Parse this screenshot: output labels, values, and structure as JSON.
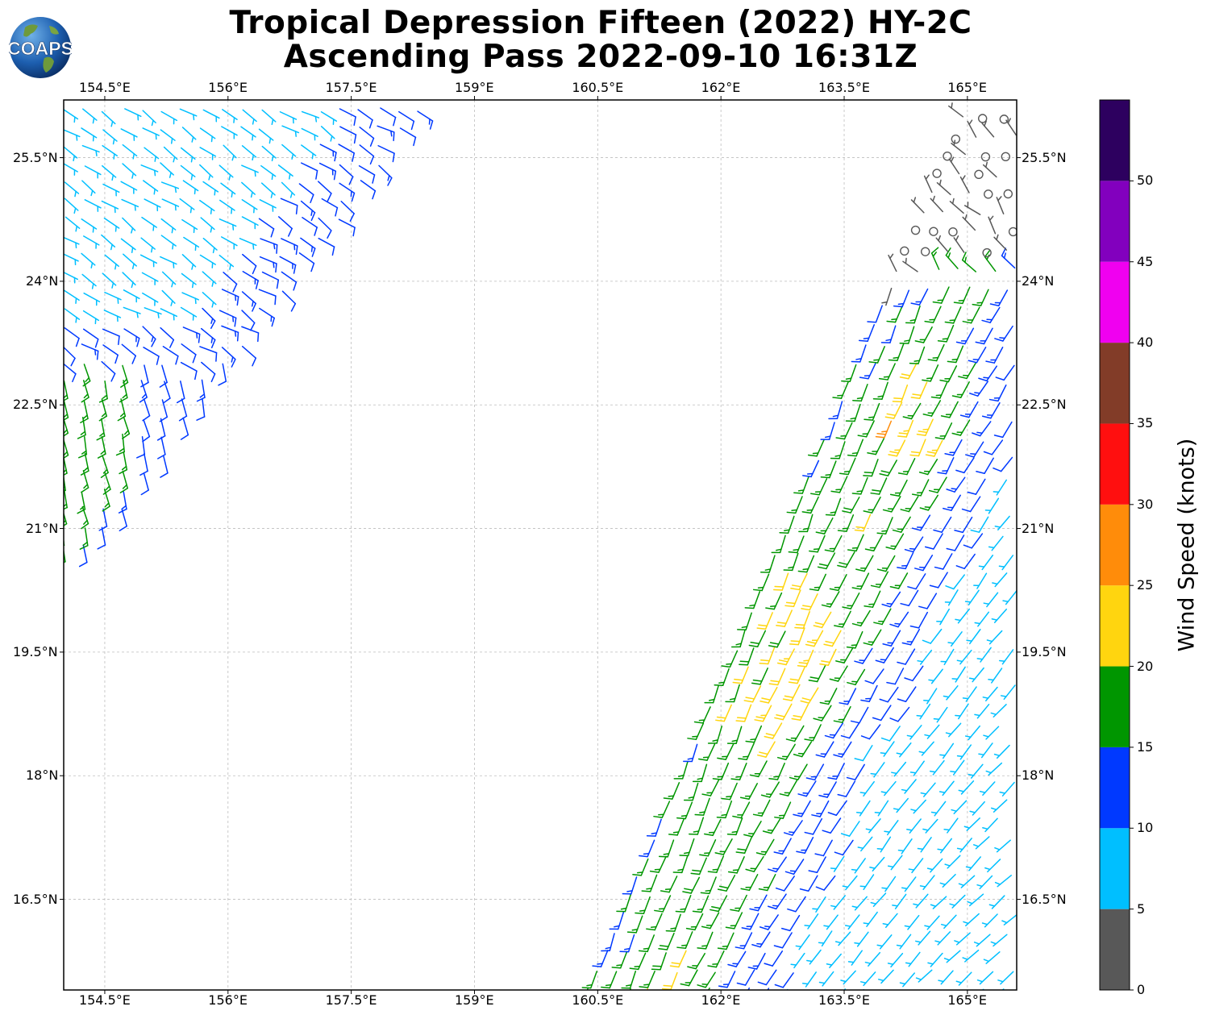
{
  "title": {
    "line1": "Tropical Depression Fifteen (2022) HY-2C",
    "line2": "Ascending Pass 2022-09-10 16:31Z"
  },
  "logo": {
    "text": "COAPS",
    "icon": "globe-icon"
  },
  "map": {
    "lon_ticks": [
      "154.5°E",
      "156°E",
      "157.5°E",
      "159°E",
      "160.5°E",
      "162°E",
      "163.5°E",
      "165°E"
    ],
    "lat_ticks": [
      "25.5°N",
      "24°N",
      "22.5°N",
      "21°N",
      "19.5°N",
      "18°N",
      "16.5°N"
    ],
    "lon_range": [
      154.0,
      165.6
    ],
    "lat_range": [
      15.4,
      26.2
    ],
    "grid": true,
    "gridline_style": "dashed"
  },
  "colorbar": {
    "label": "Wind Speed (knots)",
    "ticks": [
      "0",
      "5",
      "10",
      "15",
      "20",
      "25",
      "30",
      "35",
      "40",
      "45",
      "50"
    ],
    "bins": [
      {
        "from": 0,
        "to": 5,
        "color": "#585858"
      },
      {
        "from": 5,
        "to": 10,
        "color": "#00bfff"
      },
      {
        "from": 10,
        "to": 15,
        "color": "#0039ff"
      },
      {
        "from": 15,
        "to": 20,
        "color": "#009600"
      },
      {
        "from": 20,
        "to": 25,
        "color": "#ffd50f"
      },
      {
        "from": 25,
        "to": 30,
        "color": "#ff8c0a"
      },
      {
        "from": 30,
        "to": 35,
        "color": "#ff0f0f"
      },
      {
        "from": 35,
        "to": 40,
        "color": "#823c28"
      },
      {
        "from": 40,
        "to": 45,
        "color": "#f000f0"
      },
      {
        "from": 45,
        "to": 50,
        "color": "#8200be"
      },
      {
        "from": 50,
        "to": 55,
        "color": "#2d005f"
      }
    ]
  }
}
